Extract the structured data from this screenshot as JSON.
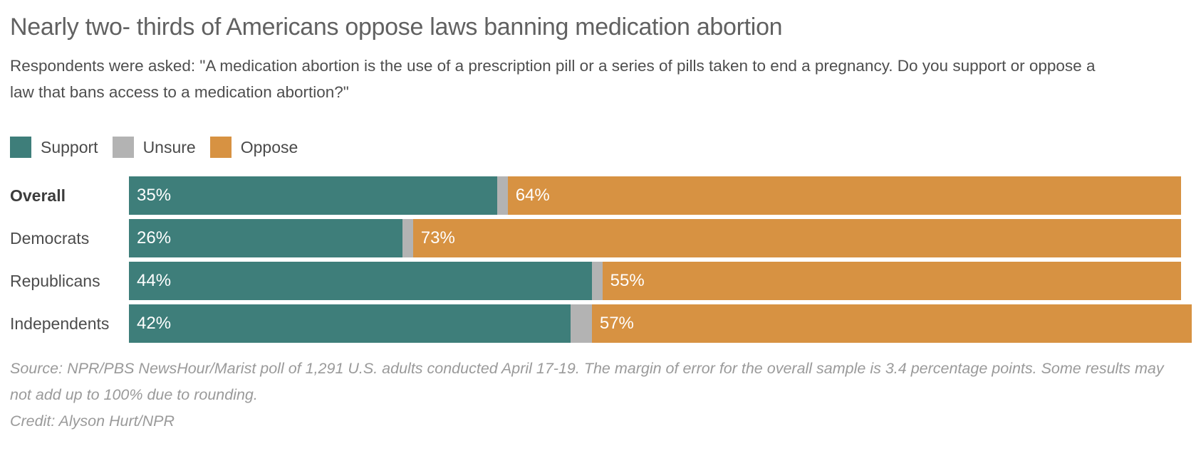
{
  "header": {
    "title": "Nearly two- thirds of Americans oppose laws banning medication abortion",
    "subtitle": "Respondents were asked: \"A medication abortion is the use of a prescription pill or a series of pills taken to end a pregnancy. Do you support or oppose a law that bans access to a medication abortion?\""
  },
  "colors": {
    "support": "#3e7e7a",
    "unsure": "#b3b3b3",
    "oppose": "#d79242"
  },
  "legend": {
    "items": [
      {
        "label": "Support",
        "color": "#3e7e7a"
      },
      {
        "label": "Unsure",
        "color": "#b3b3b3"
      },
      {
        "label": "Oppose",
        "color": "#d79242"
      }
    ]
  },
  "chart_data": {
    "type": "bar",
    "orientation": "horizontal-stacked",
    "categories": [
      "Overall",
      "Democrats",
      "Republicans",
      "Independents"
    ],
    "emphasized_category": "Overall",
    "series": [
      {
        "name": "Support",
        "color": "#3e7e7a",
        "values": [
          35,
          26,
          44,
          42
        ],
        "labels_visible": true
      },
      {
        "name": "Unsure",
        "color": "#b3b3b3",
        "values": [
          1,
          1,
          1,
          2
        ],
        "labels_visible": false
      },
      {
        "name": "Oppose",
        "color": "#d79242",
        "values": [
          64,
          73,
          55,
          57
        ],
        "labels_visible": true
      }
    ],
    "value_suffix": "%",
    "xlim": [
      0,
      100
    ],
    "grid": false,
    "legend_position": "top"
  },
  "footer": {
    "source": "Source: NPR/PBS NewsHour/Marist poll of 1,291 U.S. adults conducted April 17-19. The margin of error for the overall sample is 3.4 percentage points. Some results may not add up to 100% due to rounding.",
    "credit": "Credit: Alyson Hurt/NPR"
  }
}
